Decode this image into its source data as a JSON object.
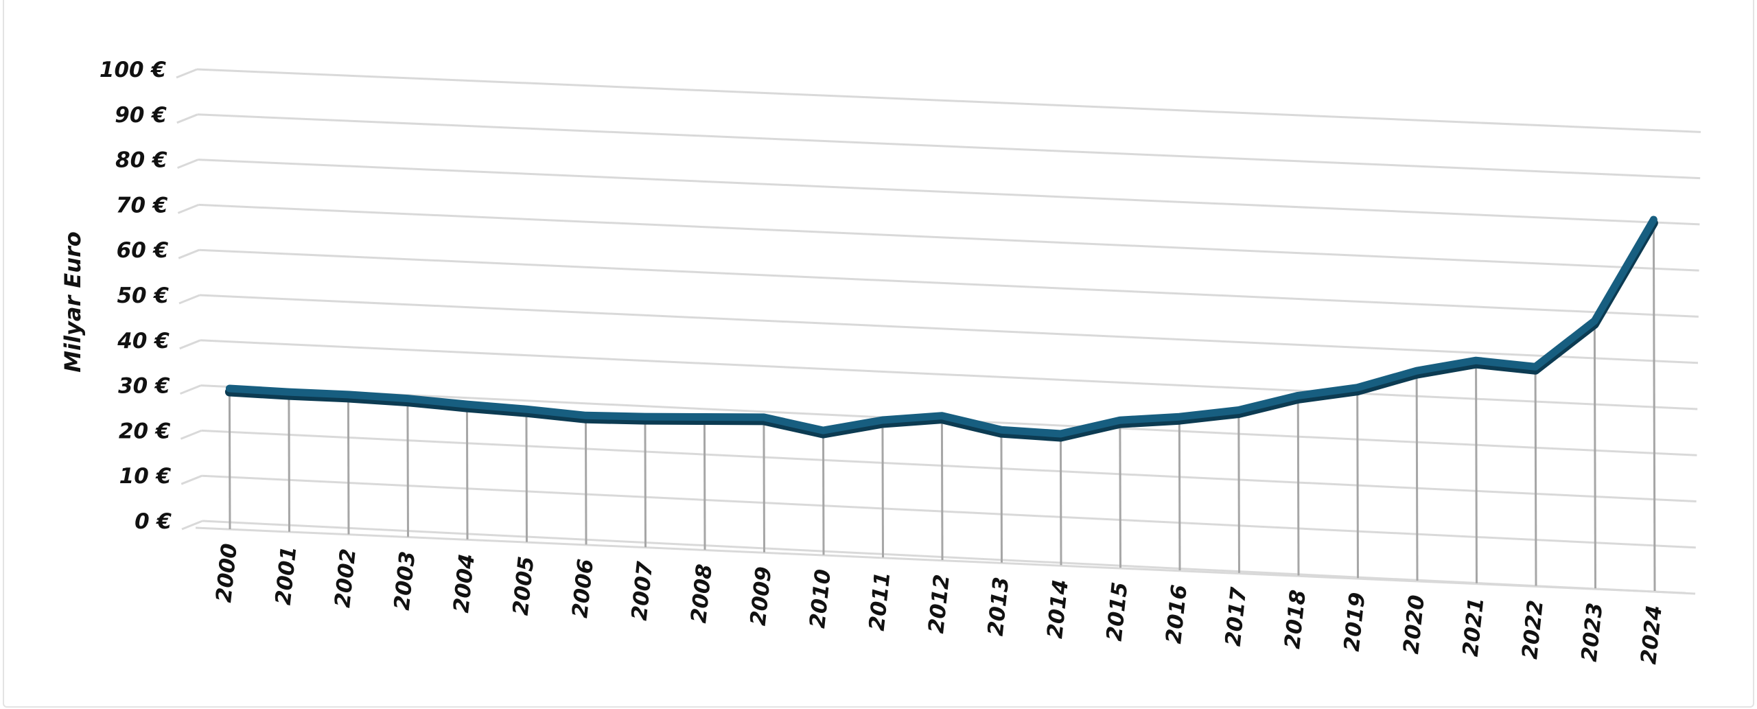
{
  "chart_data": {
    "type": "line",
    "title": "",
    "ylabel": "Milyar Euro",
    "xlabel": "",
    "categories": [
      "2000",
      "2001",
      "2002",
      "2003",
      "2004",
      "2005",
      "2006",
      "2007",
      "2008",
      "2009",
      "2010",
      "2011",
      "2012",
      "2013",
      "2014",
      "2015",
      "2016",
      "2017",
      "2018",
      "2019",
      "2020",
      "2021",
      "2022",
      "2023",
      "2024"
    ],
    "series": [
      {
        "values": [
          30.5,
          30.3,
          30.3,
          30.0,
          29.3,
          28.8,
          28.0,
          28.3,
          28.8,
          29.3,
          27.0,
          29.8,
          31.3,
          28.8,
          28.5,
          32.0,
          33.3,
          35.3,
          39.0,
          41.3,
          45.5,
          48.3,
          47.5,
          58.0,
          80.5
        ]
      }
    ],
    "y_tick_labels": [
      "0 €",
      "10 €",
      "20 €",
      "30 €",
      "40 €",
      "50 €",
      "60 €",
      "70 €",
      "80 €",
      "90 €",
      "100 €"
    ],
    "ylim": [
      0,
      100
    ],
    "grid": true,
    "legend": "none",
    "colors": {
      "line": "#175e80",
      "line_shadow": "#0c3b52",
      "grid": "#d9d9d9",
      "drop": "#a6a6a6"
    }
  }
}
